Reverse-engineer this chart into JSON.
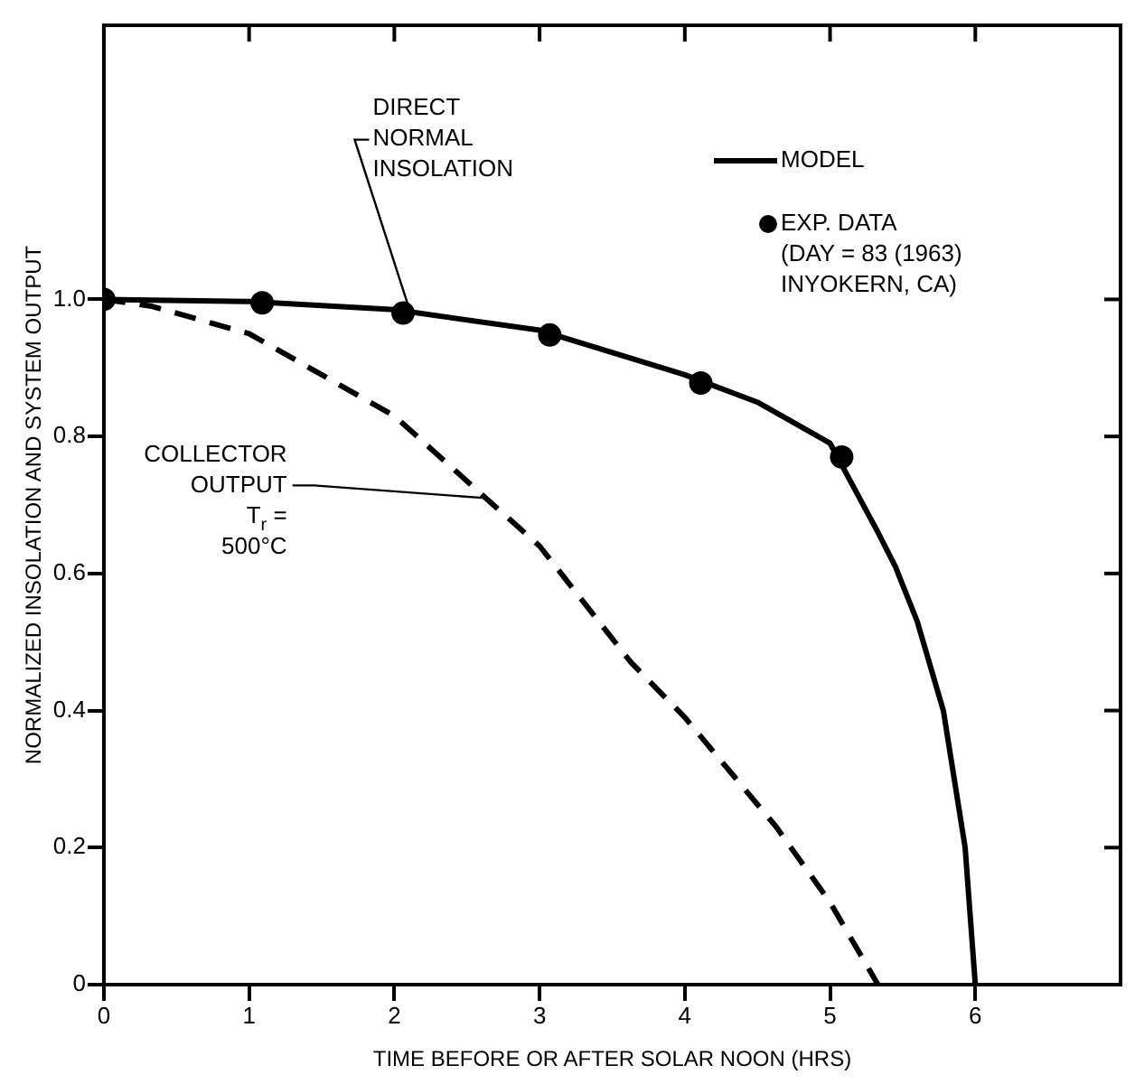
{
  "chart_data": {
    "type": "line",
    "xlabel": "TIME BEFORE OR AFTER SOLAR NOON (HRS)",
    "ylabel": "NORMALIZED INSOLATION AND SYSTEM OUTPUT",
    "xlim": [
      0,
      7
    ],
    "xticks": [
      0,
      1,
      2,
      3,
      4,
      5,
      6
    ],
    "ylim": [
      0,
      1.4
    ],
    "yticks": [
      0,
      0.2,
      0.4,
      0.6,
      0.8,
      {
        "value": 1,
        "label": "1.0"
      }
    ],
    "grid": false,
    "legend": "top right",
    "series": [
      {
        "name": "MODEL",
        "type": "line",
        "color": "#000000",
        "marker": "none",
        "line_style": "solid",
        "x": [
          0,
          1,
          2,
          3,
          4,
          4.5,
          5,
          5.33,
          5.45,
          5.6,
          5.78,
          5.93,
          6
        ],
        "values": [
          1,
          0.997,
          0.985,
          0.955,
          0.89,
          0.85,
          0.79,
          0.66,
          0.61,
          0.53,
          0.4,
          0.2,
          0
        ]
      },
      {
        "name": "EXP. DATA (DAY = 83 (1963) INYOKERN, CA)",
        "type": "scatter",
        "color": "#000000",
        "marker": "circle",
        "x": [
          0,
          1.09,
          2.06,
          3.07,
          4.11,
          5.08
        ],
        "values": [
          1,
          0.995,
          0.98,
          0.948,
          0.878,
          0.77
        ]
      },
      {
        "type": "line",
        "color": "#000000",
        "marker": "none",
        "line_style": "dashed",
        "x": [
          0,
          0.33,
          1,
          2,
          2.63,
          3,
          3.63,
          4,
          4.63,
          5,
          5.33
        ],
        "values": [
          1,
          0.99,
          0.95,
          0.83,
          0.71,
          0.64,
          0.47,
          0.39,
          0.23,
          0.12,
          0
        ]
      }
    ],
    "annotations": [
      {
        "text": "DIRECT NORMAL INSOLATION",
        "x": 2.1,
        "y": 0.98
      },
      {
        "text": "COLLECTOR OUTPUT T$_{r}$ = 500°C",
        "x": 2.63,
        "y": 0.71
      }
    ]
  }
}
